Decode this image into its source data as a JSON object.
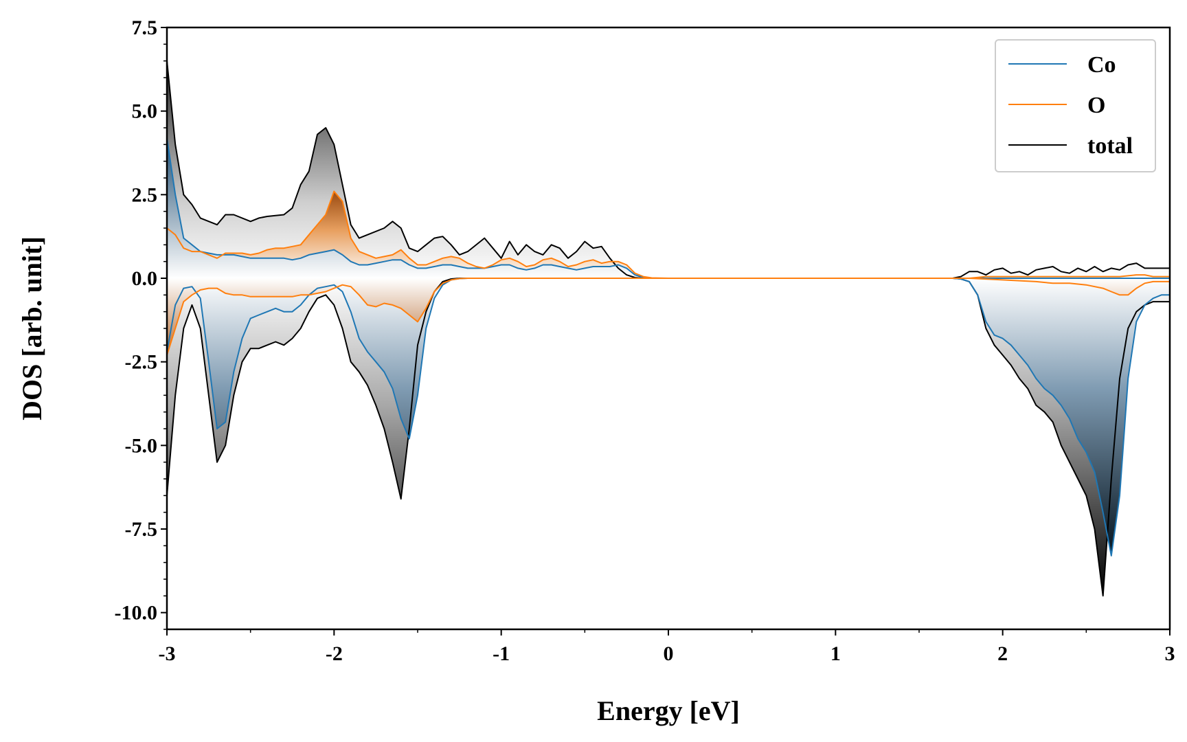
{
  "chart_data": {
    "type": "area",
    "title": "",
    "xlabel": "Energy [eV]",
    "ylabel": "DOS [arb. unit]",
    "xlim": [
      -3,
      3
    ],
    "ylim": [
      -10.5,
      7.5
    ],
    "x_ticks": [
      -3,
      -2,
      -1,
      0,
      1,
      2,
      3
    ],
    "x_tick_labels": [
      "-3",
      "-2",
      "-1",
      "0",
      "1",
      "2",
      "3"
    ],
    "y_ticks": [
      7.5,
      5.0,
      2.5,
      0.0,
      -2.5,
      -5.0,
      -7.5,
      -10.0
    ],
    "y_tick_labels": [
      "7.5",
      "5.0",
      "2.5",
      "0.0",
      "-2.5",
      "-5.0",
      "-7.5",
      "-10.0"
    ],
    "grid": false,
    "legend_position": "top-right",
    "colors": {
      "Co": "#1f77b4",
      "O": "#ff7f0e",
      "total": "#000000"
    },
    "series": [
      {
        "name": "total",
        "component": "spin up",
        "x": [
          -3.0,
          -2.95,
          -2.9,
          -2.85,
          -2.8,
          -2.7,
          -2.65,
          -2.6,
          -2.5,
          -2.45,
          -2.4,
          -2.3,
          -2.25,
          -2.2,
          -2.15,
          -2.1,
          -2.05,
          -2.0,
          -1.95,
          -1.9,
          -1.85,
          -1.8,
          -1.7,
          -1.65,
          -1.6,
          -1.55,
          -1.5,
          -1.45,
          -1.4,
          -1.35,
          -1.3,
          -1.25,
          -1.2,
          -1.1,
          -1.05,
          -1.0,
          -0.95,
          -0.9,
          -0.85,
          -0.8,
          -0.75,
          -0.7,
          -0.65,
          -0.6,
          -0.55,
          -0.5,
          -0.45,
          -0.4,
          -0.35,
          -0.3,
          -0.25,
          -0.2,
          -0.15,
          -0.1,
          0.0,
          1.7,
          1.75,
          1.8,
          1.85,
          1.9,
          1.95,
          2.0,
          2.05,
          2.1,
          2.15,
          2.2,
          2.25,
          2.3,
          2.35,
          2.4,
          2.45,
          2.5,
          2.55,
          2.6,
          2.65,
          2.7,
          2.75,
          2.8,
          2.85,
          2.9,
          2.95,
          3.0
        ],
        "y": [
          6.5,
          4.0,
          2.5,
          2.2,
          1.8,
          1.6,
          1.9,
          1.9,
          1.7,
          1.8,
          1.85,
          1.9,
          2.1,
          2.8,
          3.2,
          4.3,
          4.5,
          4.0,
          2.8,
          1.6,
          1.2,
          1.3,
          1.5,
          1.7,
          1.5,
          0.9,
          0.8,
          1.0,
          1.2,
          1.25,
          1.0,
          0.7,
          0.8,
          1.2,
          0.9,
          0.6,
          1.1,
          0.7,
          1.0,
          0.8,
          0.7,
          1.0,
          0.9,
          0.6,
          0.8,
          1.1,
          0.9,
          0.95,
          0.6,
          0.3,
          0.1,
          0.02,
          0.0,
          0.0,
          0.0,
          0.0,
          0.05,
          0.2,
          0.2,
          0.1,
          0.25,
          0.3,
          0.15,
          0.2,
          0.1,
          0.25,
          0.3,
          0.35,
          0.2,
          0.15,
          0.3,
          0.2,
          0.35,
          0.2,
          0.3,
          0.25,
          0.4,
          0.45,
          0.3,
          0.3,
          0.3,
          0.3
        ]
      },
      {
        "name": "total",
        "component": "spin down",
        "x": [
          -3.0,
          -2.95,
          -2.9,
          -2.85,
          -2.8,
          -2.75,
          -2.7,
          -2.65,
          -2.6,
          -2.55,
          -2.5,
          -2.45,
          -2.4,
          -2.35,
          -2.3,
          -2.25,
          -2.2,
          -2.15,
          -2.1,
          -2.05,
          -2.0,
          -1.95,
          -1.9,
          -1.85,
          -1.8,
          -1.75,
          -1.7,
          -1.65,
          -1.6,
          -1.55,
          -1.5,
          -1.45,
          -1.4,
          -1.35,
          -1.3,
          -1.25,
          -1.2,
          -1.1,
          0.0,
          1.7,
          1.75,
          1.8,
          1.85,
          1.9,
          1.95,
          2.0,
          2.05,
          2.1,
          2.15,
          2.2,
          2.25,
          2.3,
          2.35,
          2.4,
          2.45,
          2.5,
          2.55,
          2.6,
          2.65,
          2.7,
          2.75,
          2.8,
          2.85,
          2.9,
          2.95,
          3.0
        ],
        "y": [
          -6.5,
          -3.5,
          -1.5,
          -0.8,
          -1.5,
          -3.5,
          -5.5,
          -5.0,
          -3.5,
          -2.5,
          -2.1,
          -2.1,
          -2.0,
          -1.9,
          -2.0,
          -1.8,
          -1.5,
          -1.0,
          -0.6,
          -0.5,
          -0.8,
          -1.5,
          -2.5,
          -2.8,
          -3.2,
          -3.8,
          -4.5,
          -5.5,
          -6.6,
          -4.5,
          -2.0,
          -1.0,
          -0.4,
          -0.1,
          -0.02,
          0.0,
          0.0,
          0.0,
          0.0,
          0.0,
          -0.02,
          -0.1,
          -0.5,
          -1.5,
          -2.0,
          -2.3,
          -2.6,
          -3.0,
          -3.3,
          -3.8,
          -4.0,
          -4.3,
          -5.0,
          -5.5,
          -6.0,
          -6.5,
          -7.5,
          -9.5,
          -6.0,
          -3.0,
          -1.5,
          -1.0,
          -0.8,
          -0.7,
          -0.7,
          -0.7
        ]
      },
      {
        "name": "Co",
        "component": "spin up",
        "x": [
          -3.0,
          -2.95,
          -2.9,
          -2.85,
          -2.8,
          -2.7,
          -2.6,
          -2.5,
          -2.45,
          -2.4,
          -2.3,
          -2.25,
          -2.2,
          -2.15,
          -2.1,
          -2.05,
          -2.0,
          -1.95,
          -1.9,
          -1.85,
          -1.8,
          -1.75,
          -1.7,
          -1.65,
          -1.6,
          -1.55,
          -1.5,
          -1.45,
          -1.4,
          -1.35,
          -1.3,
          -1.25,
          -1.2,
          -1.1,
          -1.05,
          -1.0,
          -0.95,
          -0.9,
          -0.85,
          -0.8,
          -0.75,
          -0.7,
          -0.65,
          -0.6,
          -0.55,
          -0.5,
          -0.45,
          -0.4,
          -0.35,
          -0.3,
          -0.25,
          -0.2,
          -0.15,
          -0.1,
          0.0,
          3.0
        ],
        "y": [
          4.2,
          2.5,
          1.2,
          1.0,
          0.8,
          0.7,
          0.7,
          0.6,
          0.6,
          0.6,
          0.6,
          0.55,
          0.6,
          0.7,
          0.75,
          0.8,
          0.85,
          0.7,
          0.5,
          0.4,
          0.4,
          0.45,
          0.5,
          0.55,
          0.55,
          0.4,
          0.3,
          0.3,
          0.35,
          0.4,
          0.4,
          0.35,
          0.3,
          0.3,
          0.35,
          0.4,
          0.4,
          0.3,
          0.25,
          0.3,
          0.4,
          0.4,
          0.35,
          0.3,
          0.25,
          0.3,
          0.35,
          0.35,
          0.35,
          0.4,
          0.3,
          0.1,
          0.02,
          0.0,
          0.0,
          0.0
        ]
      },
      {
        "name": "Co",
        "component": "spin down",
        "x": [
          -3.0,
          -2.95,
          -2.9,
          -2.85,
          -2.8,
          -2.75,
          -2.7,
          -2.65,
          -2.6,
          -2.55,
          -2.5,
          -2.45,
          -2.4,
          -2.35,
          -2.3,
          -2.25,
          -2.2,
          -2.15,
          -2.1,
          -2.05,
          -2.0,
          -1.95,
          -1.9,
          -1.85,
          -1.8,
          -1.75,
          -1.7,
          -1.65,
          -1.6,
          -1.55,
          -1.5,
          -1.45,
          -1.4,
          -1.35,
          -1.3,
          -1.25,
          -1.2,
          -1.1,
          0.0,
          1.7,
          1.75,
          1.8,
          1.85,
          1.9,
          1.95,
          2.0,
          2.05,
          2.1,
          2.15,
          2.2,
          2.25,
          2.3,
          2.35,
          2.4,
          2.45,
          2.5,
          2.55,
          2.6,
          2.65,
          2.7,
          2.75,
          2.8,
          2.85,
          2.9,
          2.95,
          3.0
        ],
        "y": [
          -2.2,
          -0.8,
          -0.3,
          -0.25,
          -0.6,
          -2.5,
          -4.5,
          -4.3,
          -2.8,
          -1.8,
          -1.2,
          -1.1,
          -1.0,
          -0.9,
          -1.0,
          -1.0,
          -0.8,
          -0.5,
          -0.3,
          -0.25,
          -0.2,
          -0.4,
          -1.0,
          -1.8,
          -2.2,
          -2.5,
          -2.8,
          -3.3,
          -4.2,
          -4.8,
          -3.5,
          -1.5,
          -0.6,
          -0.2,
          -0.05,
          -0.01,
          0.0,
          0.0,
          0.0,
          0.0,
          -0.02,
          -0.1,
          -0.5,
          -1.3,
          -1.7,
          -1.8,
          -2.0,
          -2.3,
          -2.6,
          -3.0,
          -3.3,
          -3.5,
          -3.8,
          -4.2,
          -4.8,
          -5.2,
          -5.8,
          -7.0,
          -8.3,
          -6.5,
          -3.0,
          -1.3,
          -0.8,
          -0.6,
          -0.5,
          -0.5
        ]
      },
      {
        "name": "O",
        "component": "spin up",
        "x": [
          -3.0,
          -2.95,
          -2.9,
          -2.85,
          -2.8,
          -2.75,
          -2.7,
          -2.65,
          -2.6,
          -2.55,
          -2.5,
          -2.45,
          -2.4,
          -2.35,
          -2.3,
          -2.25,
          -2.2,
          -2.15,
          -2.1,
          -2.05,
          -2.0,
          -1.95,
          -1.9,
          -1.85,
          -1.8,
          -1.75,
          -1.7,
          -1.65,
          -1.6,
          -1.55,
          -1.5,
          -1.45,
          -1.4,
          -1.35,
          -1.3,
          -1.25,
          -1.2,
          -1.15,
          -1.1,
          -1.05,
          -1.0,
          -0.95,
          -0.9,
          -0.85,
          -0.8,
          -0.75,
          -0.7,
          -0.65,
          -0.6,
          -0.55,
          -0.5,
          -0.45,
          -0.4,
          -0.35,
          -0.3,
          -0.25,
          -0.2,
          -0.15,
          -0.1,
          0.0,
          1.8,
          1.9,
          2.0,
          2.1,
          2.2,
          2.3,
          2.4,
          2.5,
          2.6,
          2.7,
          2.8,
          2.85,
          2.9,
          3.0
        ],
        "y": [
          1.5,
          1.3,
          0.9,
          0.8,
          0.8,
          0.7,
          0.6,
          0.75,
          0.75,
          0.75,
          0.7,
          0.75,
          0.85,
          0.9,
          0.9,
          0.95,
          1.0,
          1.3,
          1.6,
          1.9,
          2.6,
          2.3,
          1.2,
          0.8,
          0.7,
          0.6,
          0.65,
          0.7,
          0.85,
          0.6,
          0.4,
          0.4,
          0.5,
          0.6,
          0.65,
          0.6,
          0.45,
          0.35,
          0.3,
          0.4,
          0.55,
          0.6,
          0.5,
          0.35,
          0.4,
          0.55,
          0.6,
          0.5,
          0.35,
          0.4,
          0.5,
          0.55,
          0.45,
          0.5,
          0.5,
          0.4,
          0.15,
          0.05,
          0.01,
          0.0,
          0.0,
          0.05,
          0.05,
          0.05,
          0.05,
          0.05,
          0.05,
          0.05,
          0.05,
          0.05,
          0.1,
          0.1,
          0.05,
          0.05
        ]
      },
      {
        "name": "O",
        "component": "spin down",
        "x": [
          -3.0,
          -2.95,
          -2.9,
          -2.85,
          -2.8,
          -2.75,
          -2.7,
          -2.65,
          -2.6,
          -2.55,
          -2.5,
          -2.45,
          -2.4,
          -2.35,
          -2.3,
          -2.25,
          -2.2,
          -2.15,
          -2.1,
          -2.05,
          -2.0,
          -1.95,
          -1.9,
          -1.85,
          -1.8,
          -1.75,
          -1.7,
          -1.65,
          -1.6,
          -1.55,
          -1.5,
          -1.45,
          -1.4,
          -1.35,
          -1.3,
          -1.25,
          -1.2,
          -1.1,
          0.0,
          1.6,
          1.8,
          2.0,
          2.2,
          2.3,
          2.4,
          2.5,
          2.6,
          2.65,
          2.7,
          2.75,
          2.8,
          2.85,
          2.9,
          3.0
        ],
        "y": [
          -2.3,
          -1.5,
          -0.7,
          -0.5,
          -0.35,
          -0.3,
          -0.3,
          -0.45,
          -0.5,
          -0.5,
          -0.55,
          -0.55,
          -0.55,
          -0.55,
          -0.55,
          -0.55,
          -0.5,
          -0.5,
          -0.45,
          -0.4,
          -0.3,
          -0.2,
          -0.25,
          -0.5,
          -0.8,
          -0.85,
          -0.75,
          -0.8,
          -0.9,
          -1.1,
          -1.3,
          -0.9,
          -0.4,
          -0.15,
          -0.05,
          -0.01,
          0.0,
          0.0,
          0.0,
          0.0,
          0.0,
          -0.05,
          -0.1,
          -0.15,
          -0.15,
          -0.2,
          -0.3,
          -0.4,
          -0.5,
          -0.5,
          -0.3,
          -0.15,
          -0.1,
          -0.1
        ]
      }
    ]
  }
}
